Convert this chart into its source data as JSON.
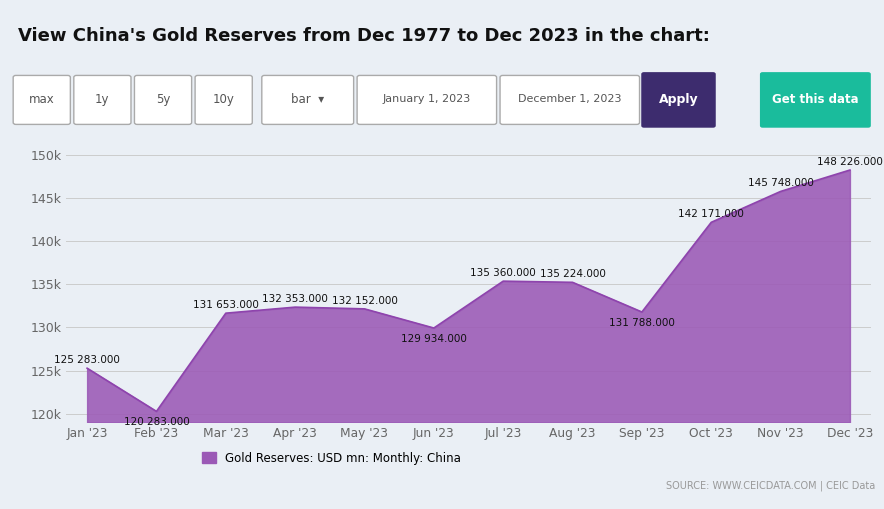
{
  "title": "View China's Gold Reserves from Dec 1977 to Dec 2023 in the chart:",
  "background_color": "#eaeff5",
  "months": [
    "Jan '23",
    "Feb '23",
    "Mar '23",
    "Apr '23",
    "May '23",
    "Jun '23",
    "Jul '23",
    "Aug '23",
    "Sep '23",
    "Oct '23",
    "Nov '23",
    "Dec '23"
  ],
  "values": [
    125283.0,
    120283.0,
    131653.0,
    132353.0,
    132152.0,
    129934.0,
    135360.0,
    135224.0,
    131788.0,
    142171.0,
    145748.0,
    148226.0
  ],
  "fill_color": "#9b59b6",
  "line_color": "#8e44ad",
  "ylim": [
    119000,
    152000
  ],
  "yticks": [
    120000,
    125000,
    130000,
    135000,
    140000,
    145000,
    150000
  ],
  "ytick_labels": [
    "120k",
    "125k",
    "130k",
    "135k",
    "140k",
    "145k",
    "150k"
  ],
  "legend_label": "Gold Reserves: USD mn: Monthly: China",
  "legend_color": "#9b59b6",
  "source_text": "SOURCE: WWW.CEICDATA.COM | CEIC Data",
  "title_fontsize": 13,
  "grid_color": "#cccccc",
  "button_texts": [
    "max",
    "1y",
    "5y",
    "10y"
  ],
  "dropdown_text": "bar  ▾",
  "date_from": "January 1, 2023",
  "date_to": "December 1, 2023",
  "apply_bg": "#3d2c6e",
  "getdata_bg": "#1abc9c",
  "apply_text": "Apply",
  "getdata_text": "Get this data",
  "annot_labels": [
    "125 283.000",
    "120 283.000",
    "131 653.000",
    "132 353.000",
    "132 152.000",
    "129 934.000",
    "135 360.000",
    "135 224.000",
    "131 788.000",
    "142 171.000",
    "145 748.000",
    "148 226.000"
  ],
  "annot_above": [
    true,
    false,
    true,
    true,
    true,
    false,
    true,
    true,
    false,
    true,
    true,
    true
  ]
}
